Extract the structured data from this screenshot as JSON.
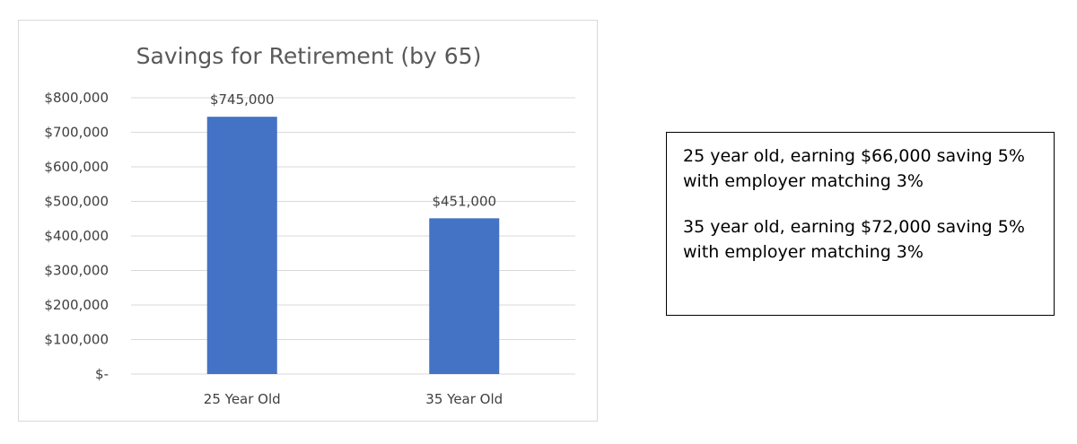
{
  "chart_data": {
    "type": "bar",
    "title": "Savings for Retirement (by 65)",
    "categories": [
      "25 Year Old",
      "35 Year Old"
    ],
    "values": [
      745000,
      451000
    ],
    "data_labels": [
      "$745,000",
      "$451,000"
    ],
    "ylim": [
      0,
      800000
    ],
    "yticks": [
      0,
      100000,
      200000,
      300000,
      400000,
      500000,
      600000,
      700000,
      800000
    ],
    "ytick_labels": [
      "$-",
      "$100,000",
      "$200,000",
      "$300,000",
      "$400,000",
      "$500,000",
      "$600,000",
      "$700,000",
      "$800,000"
    ],
    "xlabel": "",
    "ylabel": "",
    "grid": true,
    "bar_color": "#4472c4"
  },
  "note": {
    "paragraphs": [
      "25 year old, earning $66,000 saving 5% with employer matching 3%",
      "35 year old, earning $72,000 saving 5% with employer matching 3%"
    ]
  }
}
